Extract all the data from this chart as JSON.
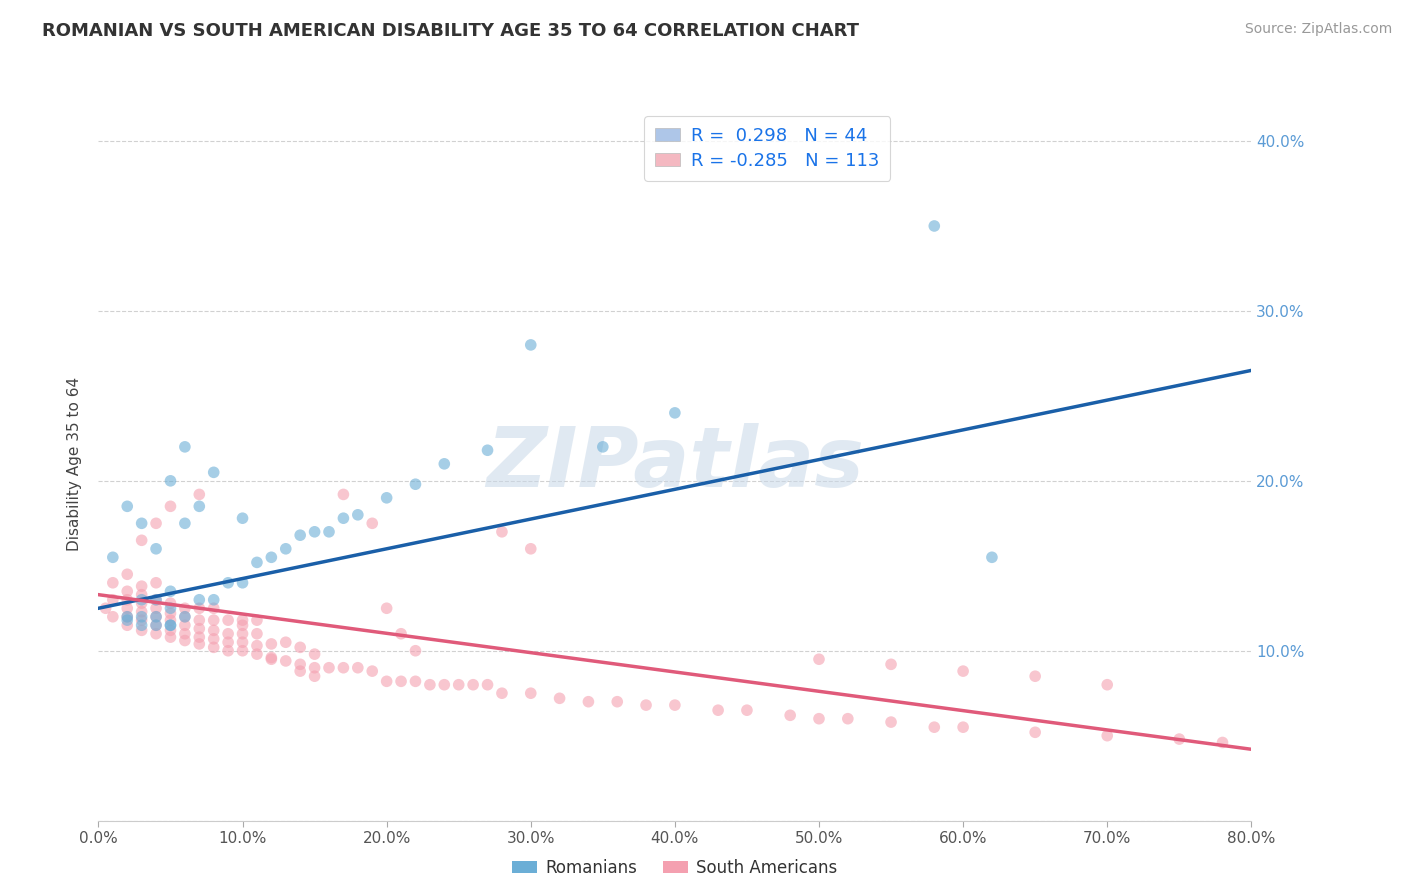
{
  "title": "ROMANIAN VS SOUTH AMERICAN DISABILITY AGE 35 TO 64 CORRELATION CHART",
  "source": "Source: ZipAtlas.com",
  "ylabel": "Disability Age 35 to 64",
  "xlim": [
    0.0,
    0.8
  ],
  "ylim": [
    0.0,
    0.42
  ],
  "xtick_vals": [
    0.0,
    0.1,
    0.2,
    0.3,
    0.4,
    0.5,
    0.6,
    0.7,
    0.8
  ],
  "ytick_vals": [
    0.0,
    0.1,
    0.2,
    0.3,
    0.4
  ],
  "ytick_labels": [
    "",
    "10.0%",
    "20.0%",
    "30.0%",
    "40.0%"
  ],
  "legend_R_romanian": "R =  0.298",
  "legend_N_romanian": "N = 44",
  "legend_R_sa": "R = -0.285",
  "legend_N_sa": "N = 113",
  "legend_patch_romanian": "#aec6e8",
  "legend_patch_sa": "#f4b8c1",
  "legend_label_romanian": "Romanians",
  "legend_label_sa": "South Americans",
  "ro_line_x0": 0.0,
  "ro_line_y0": 0.125,
  "ro_line_x1": 0.8,
  "ro_line_y1": 0.265,
  "sa_line_x0": 0.0,
  "sa_line_y0": 0.133,
  "sa_line_x1": 0.8,
  "sa_line_y1": 0.042,
  "scatter_ro_color": "#6baed6",
  "scatter_sa_color": "#f4a0b0",
  "scatter_alpha": 0.6,
  "scatter_size": 70,
  "line_ro_color": "#1a5fa8",
  "line_sa_color": "#e05a7a",
  "watermark": "ZIPatlas",
  "watermark_color": "#c8d8e8",
  "bg_color": "#ffffff",
  "grid_color": "#cccccc",
  "ro_x": [
    0.01,
    0.02,
    0.02,
    0.03,
    0.03,
    0.03,
    0.04,
    0.04,
    0.04,
    0.05,
    0.05,
    0.05,
    0.05,
    0.06,
    0.06,
    0.06,
    0.07,
    0.07,
    0.08,
    0.08,
    0.09,
    0.1,
    0.1,
    0.11,
    0.12,
    0.13,
    0.14,
    0.15,
    0.16,
    0.17,
    0.18,
    0.2,
    0.22,
    0.24,
    0.27,
    0.3,
    0.35,
    0.4,
    0.58,
    0.62,
    0.02,
    0.03,
    0.04,
    0.05
  ],
  "ro_y": [
    0.155,
    0.12,
    0.185,
    0.12,
    0.13,
    0.175,
    0.12,
    0.13,
    0.16,
    0.115,
    0.125,
    0.135,
    0.2,
    0.12,
    0.175,
    0.22,
    0.13,
    0.185,
    0.13,
    0.205,
    0.14,
    0.14,
    0.178,
    0.152,
    0.155,
    0.16,
    0.168,
    0.17,
    0.17,
    0.178,
    0.18,
    0.19,
    0.198,
    0.21,
    0.218,
    0.28,
    0.22,
    0.24,
    0.35,
    0.155,
    0.118,
    0.115,
    0.115,
    0.115
  ],
  "sa_x": [
    0.005,
    0.01,
    0.01,
    0.01,
    0.02,
    0.02,
    0.02,
    0.02,
    0.02,
    0.02,
    0.03,
    0.03,
    0.03,
    0.03,
    0.03,
    0.03,
    0.03,
    0.04,
    0.04,
    0.04,
    0.04,
    0.04,
    0.04,
    0.04,
    0.05,
    0.05,
    0.05,
    0.05,
    0.05,
    0.05,
    0.06,
    0.06,
    0.06,
    0.06,
    0.06,
    0.07,
    0.07,
    0.07,
    0.07,
    0.07,
    0.07,
    0.08,
    0.08,
    0.08,
    0.08,
    0.08,
    0.09,
    0.09,
    0.09,
    0.09,
    0.1,
    0.1,
    0.1,
    0.1,
    0.11,
    0.11,
    0.11,
    0.12,
    0.12,
    0.13,
    0.13,
    0.14,
    0.14,
    0.15,
    0.15,
    0.16,
    0.17,
    0.18,
    0.19,
    0.2,
    0.21,
    0.22,
    0.23,
    0.24,
    0.25,
    0.26,
    0.27,
    0.28,
    0.3,
    0.32,
    0.34,
    0.36,
    0.38,
    0.4,
    0.43,
    0.45,
    0.48,
    0.5,
    0.52,
    0.55,
    0.58,
    0.6,
    0.65,
    0.7,
    0.75,
    0.78,
    0.5,
    0.55,
    0.6,
    0.65,
    0.7,
    0.28,
    0.3,
    0.17,
    0.19,
    0.1,
    0.11,
    0.12,
    0.2,
    0.21,
    0.22,
    0.14,
    0.15
  ],
  "sa_y": [
    0.125,
    0.12,
    0.13,
    0.14,
    0.115,
    0.12,
    0.125,
    0.13,
    0.135,
    0.145,
    0.112,
    0.118,
    0.123,
    0.128,
    0.133,
    0.138,
    0.165,
    0.11,
    0.115,
    0.12,
    0.125,
    0.13,
    0.14,
    0.175,
    0.108,
    0.112,
    0.118,
    0.122,
    0.128,
    0.185,
    0.106,
    0.11,
    0.115,
    0.12,
    0.125,
    0.104,
    0.108,
    0.113,
    0.118,
    0.125,
    0.192,
    0.102,
    0.107,
    0.112,
    0.118,
    0.125,
    0.1,
    0.105,
    0.11,
    0.118,
    0.1,
    0.105,
    0.11,
    0.118,
    0.098,
    0.103,
    0.11,
    0.096,
    0.104,
    0.094,
    0.105,
    0.092,
    0.102,
    0.09,
    0.098,
    0.09,
    0.09,
    0.09,
    0.088,
    0.082,
    0.082,
    0.082,
    0.08,
    0.08,
    0.08,
    0.08,
    0.08,
    0.075,
    0.075,
    0.072,
    0.07,
    0.07,
    0.068,
    0.068,
    0.065,
    0.065,
    0.062,
    0.06,
    0.06,
    0.058,
    0.055,
    0.055,
    0.052,
    0.05,
    0.048,
    0.046,
    0.095,
    0.092,
    0.088,
    0.085,
    0.08,
    0.17,
    0.16,
    0.192,
    0.175,
    0.115,
    0.118,
    0.095,
    0.125,
    0.11,
    0.1,
    0.088,
    0.085
  ]
}
